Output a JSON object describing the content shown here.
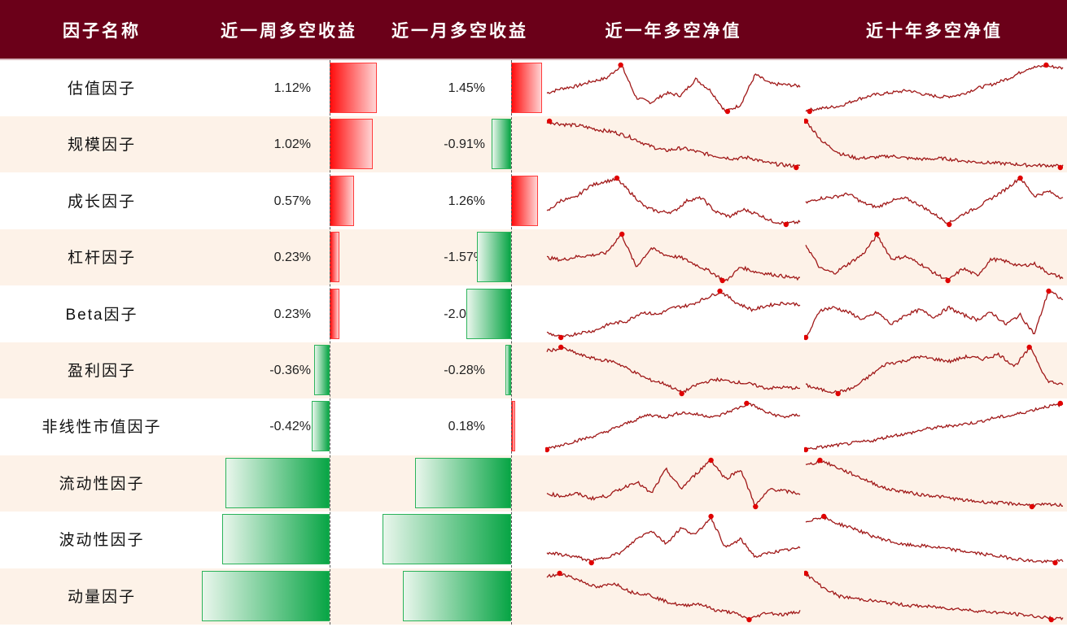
{
  "chart_data": {
    "type": "table",
    "columns": [
      "因子名称",
      "近一周多空收益",
      "近一月多空收益",
      "近一年多空净值",
      "近十年多空净值"
    ],
    "colors": {
      "header": "#6b0019",
      "positive": "#ff0d0d",
      "negative": "#08a545",
      "sparkline": "#a01818",
      "marker": "#e00000",
      "alt_row": "#fdf2e8"
    },
    "rows": [
      {
        "name": "估值因子",
        "week": 1.12,
        "week_label": "1.12%",
        "month": 1.45,
        "month_label": "1.45%",
        "year_shape": [
          40,
          50,
          55,
          65,
          72,
          100,
          30,
          20,
          40,
          35,
          70,
          45,
          0,
          15,
          80,
          60,
          58,
          55
        ],
        "decade_shape": [
          0,
          5,
          10,
          25,
          35,
          40,
          45,
          35,
          30,
          35,
          50,
          60,
          75,
          95,
          100,
          95
        ]
      },
      {
        "name": "规模因子",
        "week": 1.02,
        "week_label": "1.02%",
        "month": -0.91,
        "month_label": "-0.91%",
        "year_shape": [
          100,
          95,
          92,
          85,
          80,
          70,
          55,
          45,
          50,
          42,
          35,
          30,
          32,
          22,
          18,
          15
        ],
        "decade_shape": [
          100,
          55,
          30,
          20,
          22,
          25,
          20,
          18,
          20,
          15,
          12,
          10,
          8,
          5,
          5,
          3
        ]
      },
      {
        "name": "成长因子",
        "week": 0.57,
        "week_label": "0.57%",
        "month": 1.26,
        "month_label": "1.26%",
        "year_shape": [
          30,
          55,
          60,
          85,
          95,
          100,
          70,
          40,
          30,
          30,
          55,
          60,
          30,
          20,
          35,
          25,
          10,
          5,
          8
        ],
        "decade_shape": [
          45,
          55,
          58,
          65,
          45,
          35,
          50,
          55,
          40,
          20,
          0,
          20,
          35,
          55,
          75,
          100,
          60,
          70,
          55
        ]
      },
      {
        "name": "杠杆因子",
        "week": 0.23,
        "week_label": "0.23%",
        "month": -1.57,
        "month_label": "-1.57%",
        "year_shape": [
          50,
          45,
          52,
          55,
          60,
          100,
          30,
          70,
          55,
          50,
          35,
          20,
          0,
          30,
          20,
          15,
          10,
          5
        ],
        "decade_shape": [
          80,
          30,
          20,
          40,
          60,
          100,
          50,
          55,
          40,
          20,
          5,
          30,
          15,
          50,
          45,
          35,
          40,
          20,
          10
        ]
      },
      {
        "name": "Beta因子",
        "week": 0.23,
        "week_label": "0.23%",
        "month": -2.08,
        "month_label": "-2.08%",
        "year_shape": [
          10,
          0,
          10,
          15,
          30,
          35,
          55,
          50,
          65,
          70,
          85,
          100,
          75,
          60,
          70,
          75,
          72
        ],
        "decade_shape": [
          0,
          60,
          65,
          55,
          40,
          55,
          30,
          50,
          60,
          45,
          65,
          50,
          40,
          55,
          30,
          50,
          10,
          100,
          80
        ]
      },
      {
        "name": "盈利因子",
        "week": -0.36,
        "week_label": "-0.36%",
        "month": -0.28,
        "month_label": "-0.28%",
        "year_shape": [
          95,
          100,
          85,
          75,
          70,
          50,
          30,
          20,
          0,
          20,
          30,
          25,
          20,
          10,
          12,
          10
        ],
        "decade_shape": [
          20,
          10,
          5,
          15,
          40,
          65,
          70,
          80,
          75,
          70,
          80,
          75,
          85,
          60,
          100,
          30,
          20
        ]
      },
      {
        "name": "非线性市值因子",
        "week": -0.42,
        "week_label": "-0.42%",
        "month": 0.18,
        "month_label": "0.18%",
        "year_shape": [
          0,
          10,
          20,
          30,
          45,
          60,
          75,
          70,
          80,
          75,
          70,
          85,
          100,
          80,
          70,
          75
        ],
        "decade_shape": [
          0,
          5,
          10,
          15,
          20,
          30,
          35,
          45,
          50,
          55,
          60,
          70,
          75,
          85,
          95,
          100
        ]
      },
      {
        "name": "流动性因子",
        "week": -2.46,
        "week_label": "-2.46%",
        "month": -4.47,
        "month_label": "-4.47%",
        "year_shape": [
          30,
          25,
          30,
          20,
          25,
          40,
          55,
          30,
          80,
          40,
          70,
          100,
          60,
          80,
          5,
          40,
          35,
          30
        ],
        "decade_shape": [
          90,
          100,
          85,
          70,
          55,
          40,
          35,
          28,
          25,
          20,
          15,
          12,
          10,
          8,
          5,
          6,
          5
        ]
      },
      {
        "name": "波动性因子",
        "week": -2.54,
        "week_label": "-2.54%",
        "month": -5.98,
        "month_label": "-5.98%",
        "year_shape": [
          20,
          15,
          10,
          0,
          10,
          20,
          50,
          70,
          40,
          75,
          60,
          100,
          30,
          50,
          10,
          20,
          25,
          30
        ],
        "decade_shape": [
          90,
          100,
          85,
          75,
          60,
          50,
          40,
          38,
          35,
          30,
          25,
          20,
          15,
          10,
          5,
          3,
          5
        ]
      },
      {
        "name": "动量因子",
        "week": -3.02,
        "week_label": "-3.02%",
        "month": -5.02,
        "month_label": "-5.02%",
        "year_shape": [
          95,
          100,
          85,
          70,
          80,
          60,
          55,
          40,
          30,
          35,
          20,
          15,
          0,
          15,
          10,
          18
        ],
        "decade_shape": [
          100,
          70,
          50,
          45,
          40,
          35,
          30,
          28,
          25,
          22,
          18,
          15,
          12,
          8,
          3,
          0
        ]
      }
    ]
  }
}
